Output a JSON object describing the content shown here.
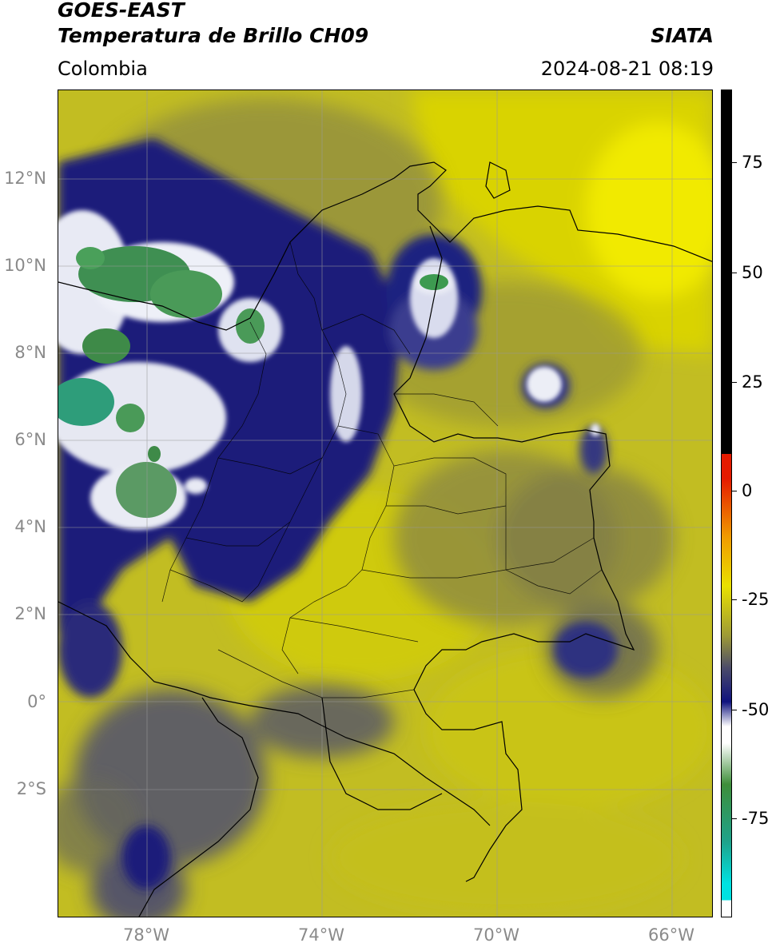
{
  "header": {
    "title_line1": "GOES-EAST",
    "title_line2": "Temperatura de Brillo CH09",
    "brand": "SIATA",
    "region": "Colombia",
    "datetime": "2024-08-21 08:19"
  },
  "axes": {
    "lat_labels": [
      "12°N",
      "10°N",
      "8°N",
      "6°N",
      "4°N",
      "2°N",
      "0°",
      "2°S"
    ],
    "lon_labels": [
      "78°W",
      "74°W",
      "70°W",
      "66°W"
    ]
  },
  "colorbar": {
    "tick_labels": [
      "75",
      "50",
      "25",
      "0",
      "-25",
      "-50",
      "-75"
    ],
    "colors": {
      "warm_black": "#000000",
      "red": "#e51a00",
      "orange": "#f09a00",
      "yellow": "#e9e100",
      "olive": "#9d9a36",
      "gray_blue": "#4a4a6a",
      "navy": "#0f137e",
      "white": "#ffffff",
      "green": "#3e8e3a",
      "teal": "#1ea38c",
      "cyan": "#00e2e2"
    }
  }
}
